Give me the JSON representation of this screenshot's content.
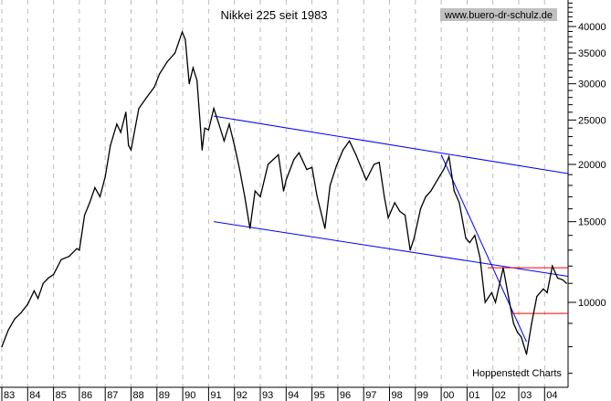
{
  "chart_data": {
    "type": "line",
    "title": "Nikkei 225 seit 1983",
    "watermark": "www.buero-dr-schulz.de",
    "credit": "Hoppenstedt Charts",
    "y_scale": "log",
    "ylim": [
      7000,
      46000
    ],
    "xlim": [
      1983.0,
      2004.9
    ],
    "y_ticks": [
      10000,
      15000,
      20000,
      25000,
      30000,
      35000,
      40000
    ],
    "x_tick_labels": [
      "83",
      "84",
      "85",
      "86",
      "87",
      "88",
      "89",
      "90",
      "91",
      "92",
      "93",
      "94",
      "95",
      "96",
      "97",
      "98",
      "99",
      "00",
      "01",
      "02",
      "03",
      "04"
    ],
    "grid": "vertical dashed per year",
    "colors": {
      "series": "#000000",
      "trendlines": "#0000ff",
      "horizontal_lines": "#ff0000",
      "watermark_bg": "#c0c0c0"
    },
    "series": [
      {
        "x": [
          1983.0,
          1983.25,
          1983.5,
          1983.75,
          1984.0,
          1984.25,
          1984.4,
          1984.6,
          1984.8,
          1985.0,
          1985.3,
          1985.6,
          1985.9,
          1986.0,
          1986.2,
          1986.4,
          1986.6,
          1986.8,
          1987.0,
          1987.2,
          1987.45,
          1987.6,
          1987.8,
          1987.9,
          1988.0,
          1988.3,
          1988.6,
          1988.9,
          1989.1,
          1989.4,
          1989.7,
          1989.98,
          1990.1,
          1990.25,
          1990.4,
          1990.55,
          1990.75,
          1990.85,
          1991.0,
          1991.2,
          1991.4,
          1991.6,
          1991.8,
          1992.0,
          1992.2,
          1992.4,
          1992.6,
          1992.8,
          1993.0,
          1993.3,
          1993.5,
          1993.7,
          1993.9,
          1994.0,
          1994.3,
          1994.5,
          1994.8,
          1995.0,
          1995.2,
          1995.5,
          1995.7,
          1995.95,
          1996.2,
          1996.45,
          1996.7,
          1996.95,
          1997.1,
          1997.4,
          1997.6,
          1997.8,
          1997.95,
          1998.2,
          1998.4,
          1998.6,
          1998.8,
          1998.95,
          1999.2,
          1999.4,
          1999.6,
          1999.95,
          2000.1,
          2000.3,
          2000.5,
          2000.7,
          2000.95,
          2001.1,
          2001.3,
          2001.5,
          2001.7,
          2001.95,
          2002.1,
          2002.4,
          2002.6,
          2002.8,
          2002.95,
          2003.1,
          2003.3,
          2003.5,
          2003.7,
          2003.95,
          2004.1,
          2004.3,
          2004.5,
          2004.7,
          2004.85
        ],
        "values": [
          8000,
          8700,
          9200,
          9500,
          9900,
          10600,
          10200,
          11000,
          11300,
          11500,
          12400,
          12600,
          13100,
          13000,
          15500,
          16500,
          17800,
          17000,
          18800,
          22000,
          24500,
          23500,
          26000,
          22000,
          21500,
          26500,
          28000,
          29500,
          31500,
          33500,
          35000,
          38900,
          37500,
          30000,
          32500,
          30500,
          21500,
          24000,
          23800,
          26500,
          24500,
          22500,
          24500,
          22000,
          19500,
          17000,
          14500,
          17500,
          17000,
          20000,
          20500,
          21000,
          17500,
          18500,
          20500,
          21200,
          19500,
          19700,
          17000,
          14500,
          18000,
          19900,
          21500,
          22500,
          21000,
          19400,
          18500,
          20000,
          20200,
          17000,
          15300,
          16500,
          15800,
          15500,
          13000,
          13800,
          16000,
          17000,
          17500,
          18900,
          19500,
          20800,
          17500,
          16500,
          13800,
          13500,
          14000,
          12500,
          10000,
          10500,
          10000,
          11900,
          10300,
          9000,
          8600,
          8400,
          7700,
          9000,
          10300,
          10700,
          10500,
          12000,
          11300,
          11200,
          11000
        ]
      }
    ],
    "trendlines": [
      {
        "from": [
          1991.2,
          25500
        ],
        "to": [
          2004.9,
          19100
        ]
      },
      {
        "from": [
          1991.2,
          15000
        ],
        "to": [
          2004.9,
          11400
        ]
      },
      {
        "from": [
          2000.0,
          21000
        ],
        "to": [
          2003.3,
          8200
        ]
      }
    ],
    "horizontal_lines": [
      {
        "value": 11900,
        "from_x": 2001.8
      },
      {
        "value": 9460,
        "from_x": 2002.7
      }
    ]
  }
}
